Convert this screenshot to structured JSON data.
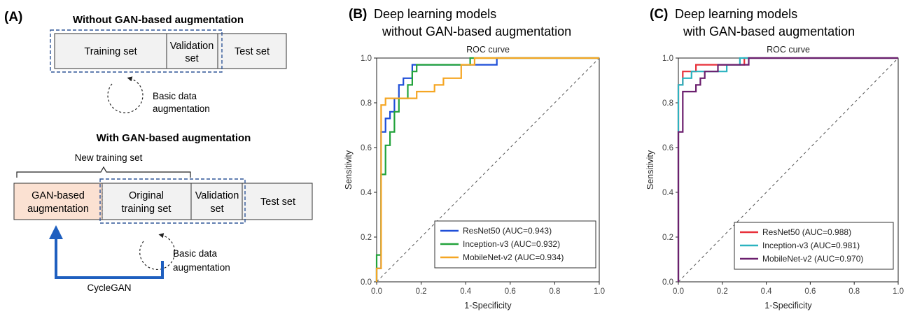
{
  "panel_a": {
    "label": "(A)",
    "top": {
      "title": "Without GAN-based augmentation",
      "training": "Training set",
      "validation_l1": "Validation",
      "validation_l2": "set",
      "test": "Test set",
      "basic_l1": "Basic data",
      "basic_l2": "augmentation"
    },
    "bottom": {
      "title": "With GAN-based augmentation",
      "new_training": "New training set",
      "gan_l1": "GAN-based",
      "gan_l2": "augmentation",
      "orig_l1": "Original",
      "orig_l2": "training set",
      "validation_l1": "Validation",
      "validation_l2": "set",
      "test": "Test set",
      "basic_l1": "Basic data",
      "basic_l2": "augmentation",
      "cyclegan": "CycleGAN"
    },
    "colors": {
      "gan_fill": "#fbe1d2",
      "box_fill": "#f2f2f2",
      "dash": "#2f5597",
      "arrow": "#1f5fbf"
    }
  },
  "panel_b": {
    "label": "(B)",
    "heading_l1": "Deep learning models",
    "heading_l2": "without GAN-based augmentation"
  },
  "panel_c": {
    "label": "(C)",
    "heading_l1": "Deep learning models",
    "heading_l2": "with GAN-based augmentation"
  },
  "chart_data": [
    {
      "type": "line",
      "title": "ROC curve",
      "xlabel": "1-Specificity",
      "ylabel": "Sensitivity",
      "xlim": [
        0,
        1
      ],
      "ylim": [
        0,
        1
      ],
      "xticks": [
        "0.0",
        "0.2",
        "0.4",
        "0.6",
        "0.8",
        "1.0"
      ],
      "yticks": [
        "0.0",
        "0.2",
        "0.4",
        "0.6",
        "0.8",
        "1.0"
      ],
      "legend_position": "bottom-right",
      "diagonal": true,
      "series": [
        {
          "name": "ResNet50 (AUC=0.943)",
          "color": "#1f4fd8",
          "x": [
            0,
            0,
            0.02,
            0.02,
            0.04,
            0.04,
            0.06,
            0.06,
            0.08,
            0.08,
            0.1,
            0.1,
            0.12,
            0.12,
            0.16,
            0.16,
            0.2,
            0.2,
            0.4,
            0.4,
            0.54,
            0.54,
            1.0
          ],
          "y": [
            0,
            0.06,
            0.06,
            0.67,
            0.67,
            0.73,
            0.73,
            0.76,
            0.76,
            0.82,
            0.82,
            0.88,
            0.88,
            0.91,
            0.91,
            0.97,
            0.97,
            0.97,
            0.97,
            0.97,
            0.97,
            1.0,
            1.0
          ]
        },
        {
          "name": "Inception-v3 (AUC=0.932)",
          "color": "#22a33b",
          "x": [
            0,
            0,
            0.01,
            0.01,
            0.02,
            0.02,
            0.04,
            0.04,
            0.06,
            0.06,
            0.08,
            0.08,
            0.1,
            0.1,
            0.14,
            0.14,
            0.16,
            0.16,
            0.18,
            0.18,
            0.22,
            0.22,
            0.42,
            0.42,
            1.0
          ],
          "y": [
            0,
            0.12,
            0.12,
            0.12,
            0.12,
            0.48,
            0.48,
            0.61,
            0.61,
            0.67,
            0.67,
            0.76,
            0.76,
            0.82,
            0.82,
            0.88,
            0.88,
            0.94,
            0.94,
            0.97,
            0.97,
            0.97,
            0.97,
            1.0,
            1.0
          ]
        },
        {
          "name": "MobileNet-v2 (AUC=0.934)",
          "color": "#f5a623",
          "x": [
            0,
            0,
            0.02,
            0.02,
            0.04,
            0.04,
            0.18,
            0.18,
            0.26,
            0.26,
            0.3,
            0.3,
            0.38,
            0.38,
            0.44,
            0.44,
            1.0
          ],
          "y": [
            0,
            0.06,
            0.06,
            0.79,
            0.79,
            0.82,
            0.82,
            0.85,
            0.85,
            0.88,
            0.88,
            0.91,
            0.91,
            0.97,
            0.97,
            1.0,
            1.0
          ]
        }
      ]
    },
    {
      "type": "line",
      "title": "ROC curve",
      "xlabel": "1-Specificity",
      "ylabel": "Sensitivity",
      "xlim": [
        0,
        1
      ],
      "ylim": [
        0,
        1
      ],
      "xticks": [
        "0.0",
        "0.2",
        "0.4",
        "0.6",
        "0.8",
        "1.0"
      ],
      "yticks": [
        "0.0",
        "0.2",
        "0.4",
        "0.6",
        "0.8",
        "1.0"
      ],
      "legend_position": "bottom-right",
      "diagonal": true,
      "series": [
        {
          "name": "ResNet50 (AUC=0.988)",
          "color": "#e8303a",
          "x": [
            0,
            0,
            0.02,
            0.02,
            0.04,
            0.04,
            0.08,
            0.08,
            0.3,
            0.3,
            1.0
          ],
          "y": [
            0,
            0.88,
            0.88,
            0.94,
            0.94,
            0.94,
            0.94,
            0.97,
            0.97,
            1.0,
            1.0
          ]
        },
        {
          "name": "Inception-v3 (AUC=0.981)",
          "color": "#2bb3c0",
          "x": [
            0,
            0,
            0.02,
            0.02,
            0.06,
            0.06,
            0.22,
            0.22,
            0.28,
            0.28,
            1.0
          ],
          "y": [
            0,
            0.88,
            0.88,
            0.91,
            0.91,
            0.94,
            0.94,
            0.97,
            0.97,
            1.0,
            1.0
          ]
        },
        {
          "name": "MobileNet-v2 (AUC=0.970)",
          "color": "#6b1f6e",
          "x": [
            0,
            0,
            0.02,
            0.02,
            0.08,
            0.08,
            0.1,
            0.1,
            0.12,
            0.12,
            0.14,
            0.14,
            0.18,
            0.18,
            0.3,
            0.3,
            0.32,
            0.32,
            1.0
          ],
          "y": [
            0,
            0.67,
            0.67,
            0.85,
            0.85,
            0.88,
            0.88,
            0.91,
            0.91,
            0.94,
            0.94,
            0.94,
            0.94,
            0.97,
            0.97,
            0.97,
            0.97,
            1.0,
            1.0
          ]
        }
      ]
    }
  ]
}
